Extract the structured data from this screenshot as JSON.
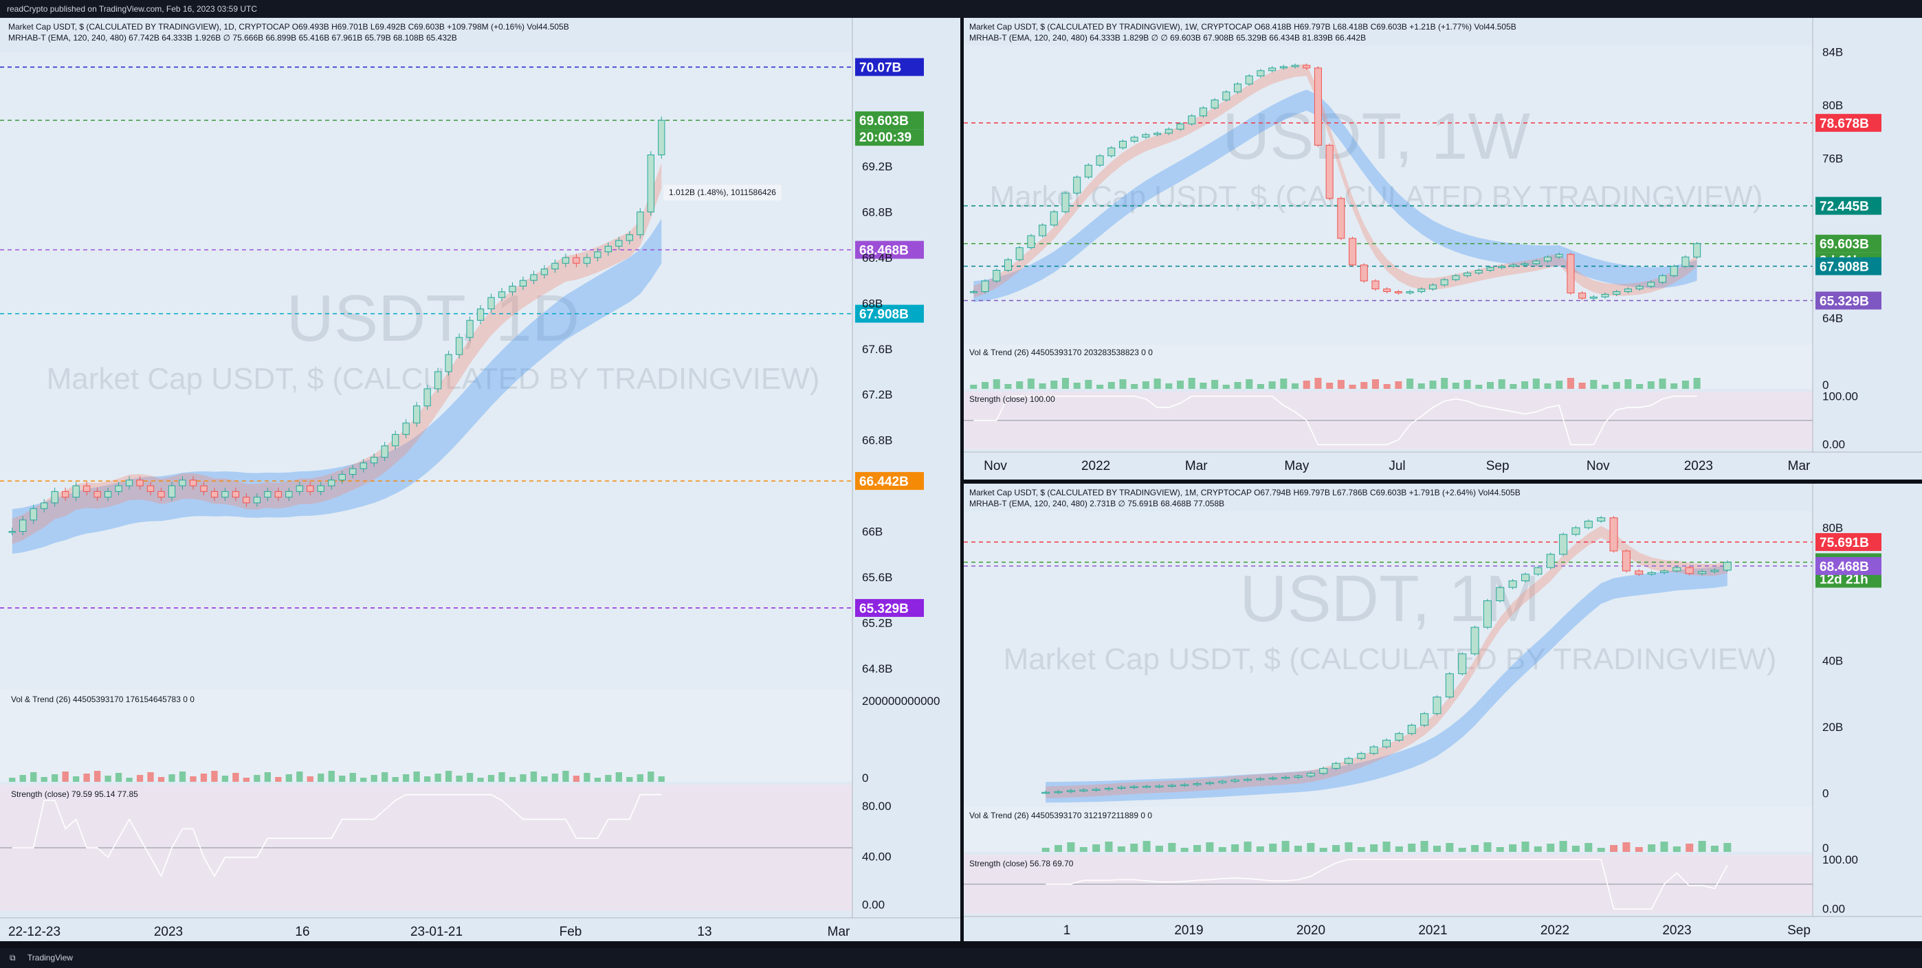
{
  "header": {
    "publisher": "readCrypto published on TradingView.com, Feb 16, 2023 03:59 UTC"
  },
  "footer": {
    "brand": "TradingView"
  },
  "panes": {
    "left": {
      "legend1": "Market Cap USDT, $ (CALCULATED BY TRADINGVIEW), 1D, CRYPTOCAP  O69.493B  H69.701B  L69.492B  C69.603B  +109.798M (+0.16%)  Vol44.505B",
      "legend2": "MRHAB-T (EMA, 120, 240, 480)  67.742B  64.333B  1.926B  ∅  75.666B  66.899B  65.416B  67.961B  65.79B  68.108B  65.432B",
      "watermark1": "USDT, 1D",
      "watermark2": "Market Cap USDT, $ (CALCULATED BY TRADINGVIEW)",
      "measure": "1.012B (1.48%), 1011586426",
      "sub1": "Vol & Trend (26)  44505393170  176154645783  0  0",
      "sub2": "Strength (close)  79.59  95.14  77.85",
      "vol_axis": [
        "200000000000",
        "0"
      ],
      "str_axis": [
        "80.00",
        "40.00",
        "0.00"
      ]
    },
    "topright": {
      "legend1": "Market Cap USDT, $ (CALCULATED BY TRADINGVIEW), 1W, CRYPTOCAP  O68.418B  H69.797B  L68.418B  C69.603B  +1.21B (+1.77%)  Vol44.505B",
      "legend2": "MRHAB-T (EMA, 120, 240, 480)  64.333B  1.829B  ∅  ∅  69.603B  67.908B  65.329B  66.434B  81.839B  66.442B",
      "watermark1": "USDT, 1W",
      "watermark2": "Market Cap USDT, $ (CALCULATED BY TRADINGVIEW)",
      "sub1": "Vol & Trend (26)  44505393170  203283538823  0  0",
      "sub2": "Strength (close)  100.00",
      "vol_axis": [
        "0"
      ],
      "str_axis": [
        "100.00",
        "0.00"
      ]
    },
    "bottomright": {
      "legend1": "Market Cap USDT, $ (CALCULATED BY TRADINGVIEW), 1M, CRYPTOCAP  O67.794B  H69.797B  L67.786B  C69.603B  +1.791B (+2.64%)  Vol44.505B",
      "legend2": "MRHAB-T (EMA, 120, 240, 480)  2.731B  ∅  75.691B  68.468B  77.058B",
      "watermark1": "USDT, 1M",
      "watermark2": "Market Cap USDT, $ (CALCULATED BY TRADINGVIEW)",
      "sub1": "Vol & Trend (26)  44505393170  312197211889  0  0",
      "sub2": "Strength (close)  56.78  69.70",
      "vol_axis": [
        "0"
      ],
      "str_axis": [
        "100.00",
        "0.00"
      ]
    }
  },
  "chart_data": [
    {
      "type": "candlestick",
      "timeframe": "1D",
      "series": [
        {
          "name": "Market Cap USDT",
          "unit": "B",
          "close": [
            66.0,
            66.1,
            66.2,
            66.25,
            66.35,
            66.3,
            66.4,
            66.35,
            66.3,
            66.35,
            66.4,
            66.45,
            66.4,
            66.35,
            66.3,
            66.4,
            66.45,
            66.4,
            66.35,
            66.3,
            66.35,
            66.3,
            66.25,
            66.3,
            66.35,
            66.3,
            66.35,
            66.4,
            66.35,
            66.4,
            66.45,
            66.5,
            66.55,
            66.6,
            66.65,
            66.75,
            66.85,
            66.95,
            67.1,
            67.25,
            67.4,
            67.55,
            67.7,
            67.85,
            67.95,
            68.05,
            68.1,
            68.15,
            68.2,
            68.25,
            68.3,
            68.35,
            68.4,
            68.35,
            68.4,
            68.45,
            68.5,
            68.55,
            68.6,
            68.8,
            69.3,
            69.603
          ]
        }
      ],
      "xticks": [
        "22-12-23",
        "2023",
        "16",
        "23-01-21",
        "Feb",
        "13",
        "Mar"
      ],
      "yticks": [
        "69.2B",
        "68.8B",
        "68.4B",
        "68B",
        "67.6B",
        "67.2B",
        "66.8B",
        "66B",
        "65.6B",
        "65.2B",
        "64.8B"
      ],
      "ylim": [
        64.6,
        70.2
      ],
      "levels": [
        {
          "label": "70.07B",
          "value": 70.07,
          "color": "#1f22c9"
        },
        {
          "label": "69.603B",
          "value": 69.603,
          "color": "#3a9a3a",
          "countdown": "20:00:39"
        },
        {
          "label": "68.468B",
          "value": 68.468,
          "color": "#9c4fd6"
        },
        {
          "label": "67.908B",
          "value": 67.908,
          "color": "#00a9c5"
        },
        {
          "label": "66.442B",
          "value": 66.442,
          "color": "#f58a07"
        },
        {
          "label": "65.329B",
          "value": 65.329,
          "color": "#8e24e0"
        }
      ]
    },
    {
      "type": "candlestick",
      "timeframe": "1W",
      "series": [
        {
          "name": "Market Cap USDT",
          "unit": "B",
          "close": [
            66.0,
            66.8,
            67.6,
            68.4,
            69.3,
            70.2,
            71.0,
            72.0,
            73.4,
            74.6,
            75.5,
            76.2,
            76.8,
            77.3,
            77.6,
            77.8,
            77.9,
            78.2,
            78.6,
            79.2,
            79.8,
            80.4,
            81.0,
            81.6,
            82.2,
            82.6,
            82.8,
            82.9,
            83.0,
            82.8,
            77.0,
            73.0,
            70.0,
            68.0,
            66.8,
            66.2,
            66.0,
            65.9,
            66.0,
            66.2,
            66.5,
            66.9,
            67.2,
            67.4,
            67.6,
            67.8,
            67.9,
            68.0,
            68.1,
            68.3,
            68.6,
            68.8,
            65.9,
            65.5,
            65.6,
            65.8,
            66.0,
            66.2,
            66.4,
            66.7,
            67.2,
            67.9,
            68.6,
            69.603
          ]
        }
      ],
      "xticks": [
        "Nov",
        "2022",
        "Mar",
        "May",
        "Jul",
        "Sep",
        "Nov",
        "2023",
        "Mar"
      ],
      "yticks": [
        "84B",
        "80B",
        "76B",
        "64B"
      ],
      "ylim": [
        62.0,
        84.5
      ],
      "levels": [
        {
          "label": "78.678B",
          "value": 78.678,
          "color": "#f23645"
        },
        {
          "label": "72.445B",
          "value": 72.445,
          "color": "#00897b"
        },
        {
          "label": "69.603B",
          "value": 69.603,
          "color": "#3a9a3a",
          "countdown": "3d 21h"
        },
        {
          "label": "67.908B",
          "value": 67.908,
          "color": "#00838f"
        },
        {
          "label": "65.329B",
          "value": 65.329,
          "color": "#7e57c2"
        }
      ]
    },
    {
      "type": "candlestick",
      "timeframe": "1M",
      "series": [
        {
          "name": "Market Cap USDT",
          "unit": "B",
          "close": [
            0.3,
            0.5,
            0.8,
            1.0,
            1.2,
            1.5,
            1.8,
            2.0,
            2.1,
            2.2,
            2.4,
            2.6,
            2.9,
            3.2,
            3.6,
            4.0,
            4.2,
            4.4,
            4.6,
            4.8,
            5.2,
            6.0,
            7.5,
            9.0,
            10.5,
            12.0,
            14.0,
            16.0,
            18.0,
            20.5,
            24.0,
            29.0,
            36.0,
            42.0,
            50.0,
            58.0,
            62.0,
            64.0,
            66.0,
            68.0,
            72.0,
            78.0,
            80.0,
            82.0,
            83.0,
            73.0,
            67.0,
            66.0,
            66.5,
            67.0,
            68.0,
            66.2,
            66.8,
            67.2,
            69.603
          ]
        }
      ],
      "xticks": [
        "1",
        "2019",
        "2020",
        "2021",
        "2022",
        "2023",
        "Sep"
      ],
      "yticks": [
        "80B",
        "40B",
        "20B",
        "0"
      ],
      "ylim": [
        -4,
        85
      ],
      "levels": [
        {
          "label": "75.691B",
          "value": 75.691,
          "color": "#f23645"
        },
        {
          "label": "69.603B",
          "value": 69.603,
          "color": "#3a9a3a",
          "countdown": "12d 21h"
        },
        {
          "label": "68.468B",
          "value": 68.468,
          "color": "#8e5ad6"
        }
      ]
    }
  ]
}
